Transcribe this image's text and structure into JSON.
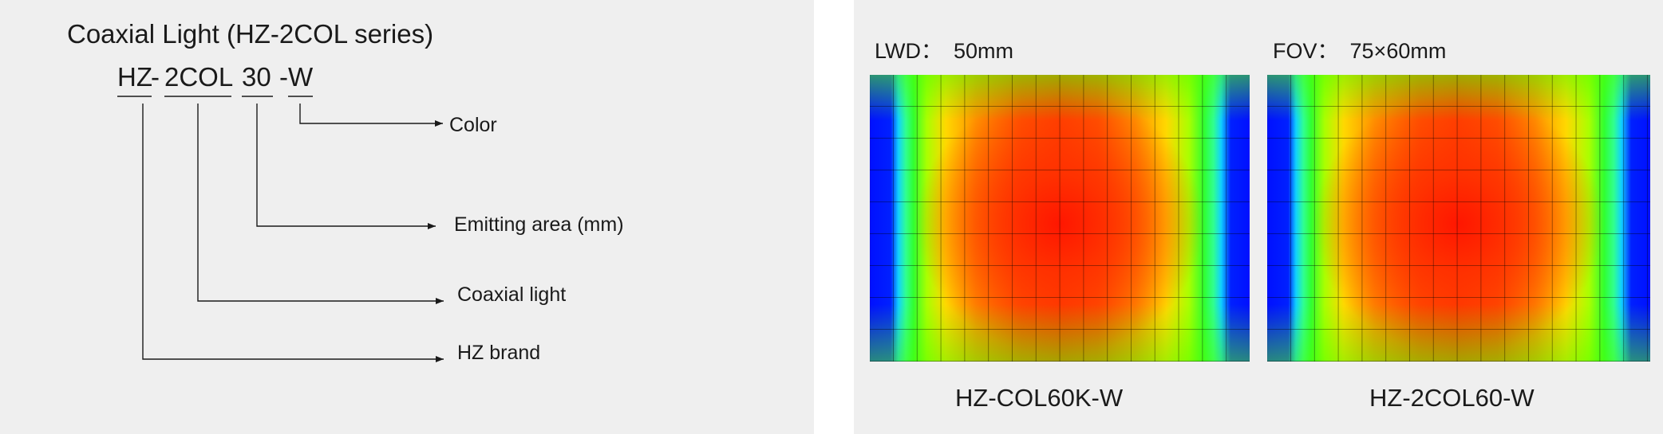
{
  "left": {
    "title": "Coaxial Light (HZ-2COL series)",
    "code_segments": [
      {
        "text": "HZ",
        "joiner": "-"
      },
      {
        "text": "2COL",
        "joiner": ""
      },
      {
        "text": "30",
        "joiner": ""
      },
      {
        "text": "-W",
        "joiner": ""
      }
    ],
    "descriptions": {
      "color": "Color",
      "emitting_area": "Emitting area (mm)",
      "coaxial_light": "Coaxial light",
      "brand": "HZ brand"
    }
  },
  "right": {
    "lwd": {
      "label": "LWD",
      "value": "50mm"
    },
    "fov": {
      "label": "FOV",
      "value": "75×60mm"
    },
    "separator": "：",
    "images": [
      {
        "caption": "HZ-COL60K-W"
      },
      {
        "caption": "HZ-2COL60-W"
      }
    ]
  },
  "colors": {
    "panel_background": "#efefef",
    "text": "#1a1a1a",
    "heatmap_edge": "#0010ff",
    "heatmap_center": "#ff3000"
  }
}
